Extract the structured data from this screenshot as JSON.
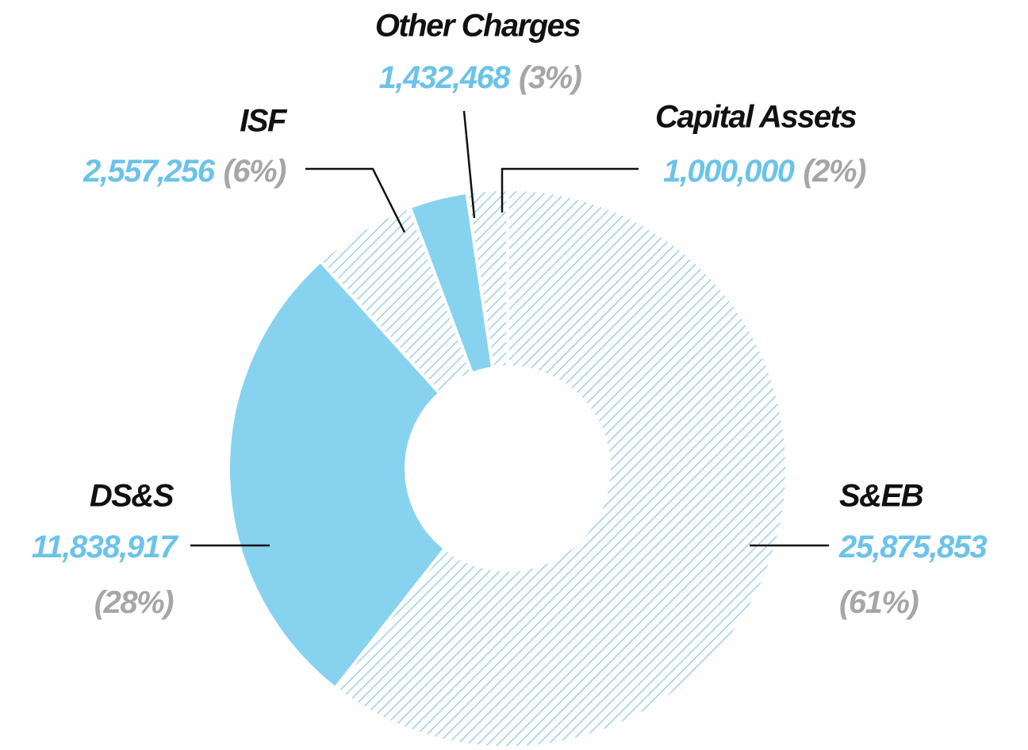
{
  "chart_data": {
    "type": "donut",
    "categories": [
      "S&EB",
      "DS&S",
      "ISF",
      "Other Charges",
      "Capital Assets"
    ],
    "values": [
      25875853,
      11838917,
      2557256,
      1432468,
      1000000
    ],
    "value_labels": [
      "25,875,853",
      "11,838,917",
      "2,557,256",
      "1,432,468",
      "1,000,000"
    ],
    "percent_labels": [
      "(61%)",
      "(28%)",
      "(6%)",
      "(3%)",
      "(2%)"
    ],
    "colors": [
      "#87d3ef",
      "#87d3ef",
      "#87d3ef",
      "#87d3ef",
      "#87d3ef"
    ],
    "patterns": [
      "hatch",
      "solid",
      "hatch",
      "solid",
      "hatch"
    ]
  }
}
